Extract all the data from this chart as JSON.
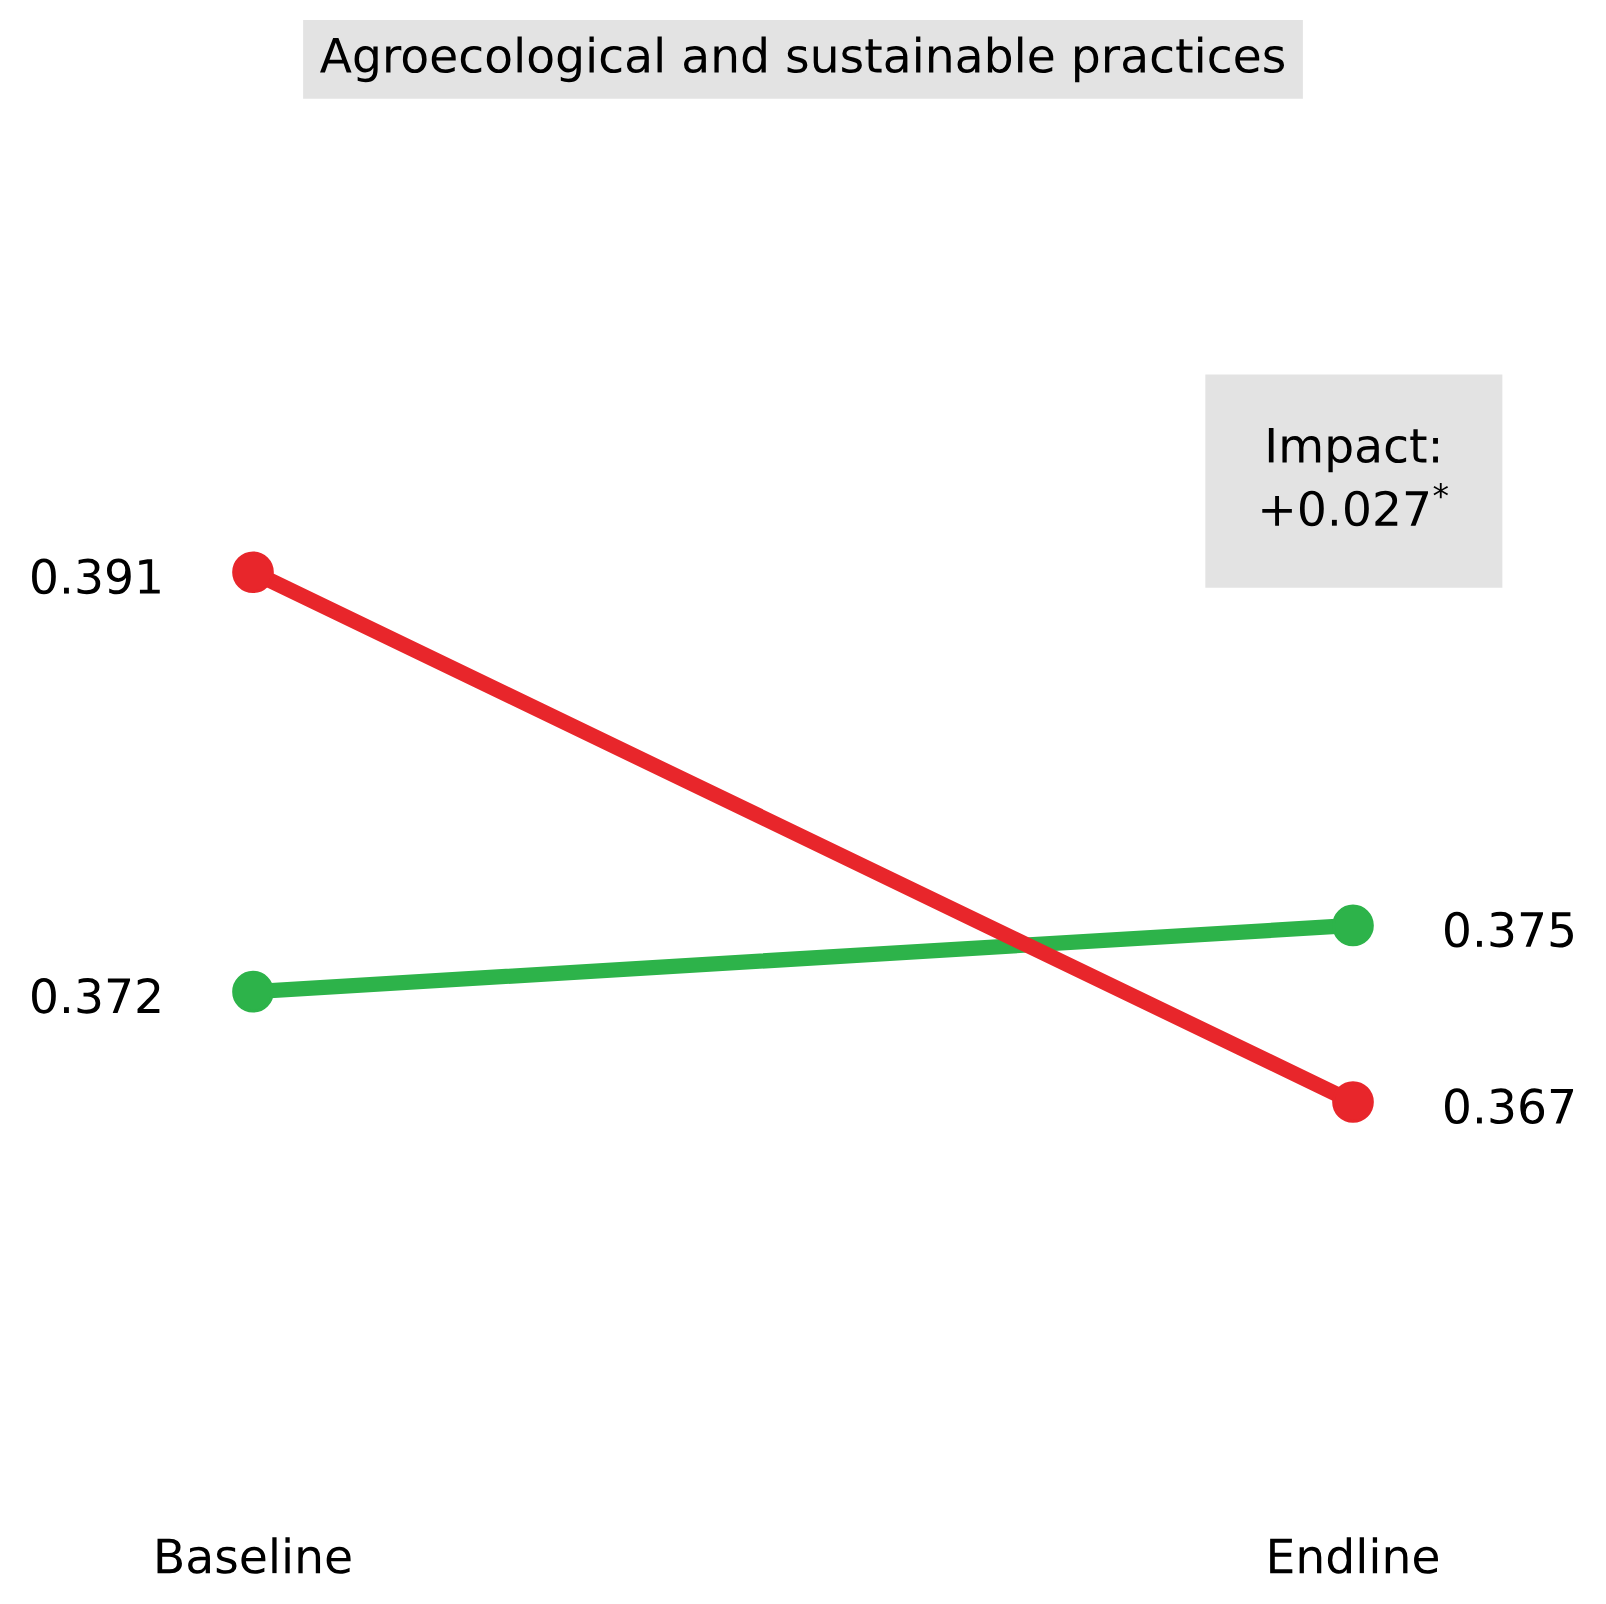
{
  "chart_data": {
    "type": "line",
    "title": "Agroecological and sustainable practices",
    "categories": [
      "Baseline",
      "Endline"
    ],
    "series": [
      {
        "color": "#2db34a",
        "values": [
          0.372,
          0.375
        ]
      },
      {
        "color": "#e8262b",
        "values": [
          0.391,
          0.367
        ]
      }
    ],
    "data_labels": true,
    "marker": "circle",
    "line_style": "solid",
    "tick_labels": "x",
    "grid": false,
    "legend": false,
    "annotations": [
      "Impact:\n+0.027$^{*}$"
    ]
  }
}
